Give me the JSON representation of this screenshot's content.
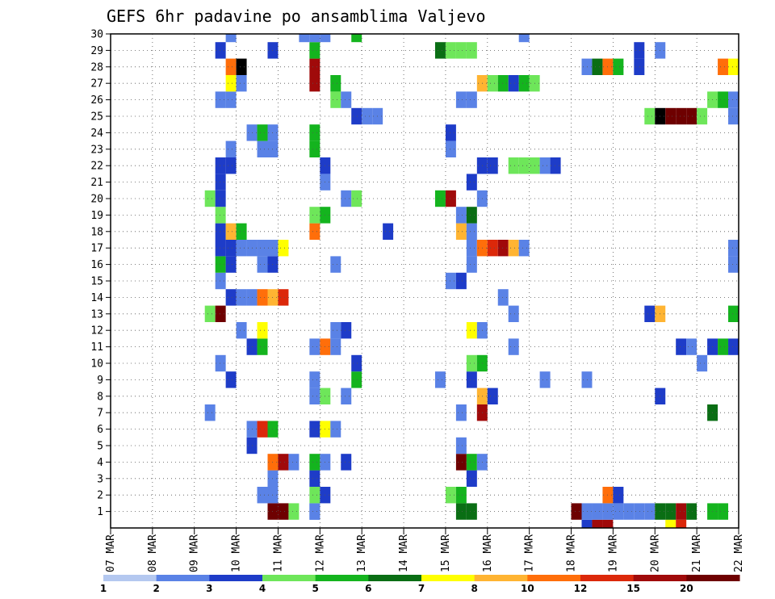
{
  "chart_data": {
    "type": "heatmap",
    "title": "GEFS 6hr padavine po ansamblima Valjevo",
    "xlabel": "",
    "ylabel": "",
    "x_labels": [
      "07 MAR",
      "08 MAR",
      "09 MAR",
      "10 MAR",
      "11 MAR",
      "12 MAR",
      "13 MAR",
      "14 MAR",
      "15 MAR",
      "16 MAR",
      "17 MAR",
      "18 MAR",
      "19 MAR",
      "20 MAR",
      "21 MAR",
      "22 MAR"
    ],
    "y_labels": [
      "1",
      "2",
      "3",
      "4",
      "5",
      "6",
      "7",
      "8",
      "9",
      "10",
      "11",
      "12",
      "13",
      "14",
      "15",
      "16",
      "17",
      "18",
      "19",
      "20",
      "21",
      "22",
      "23",
      "24",
      "25",
      "26",
      "27",
      "28",
      "29",
      "30"
    ],
    "xlim": [
      0,
      15
    ],
    "ylim": [
      0,
      30
    ],
    "time_step_hours": 6,
    "grid": true,
    "colorbar": {
      "orientation": "horizontal",
      "position": "bottom",
      "colors": [
        "#b4c8f0",
        "#5a82e6",
        "#1e3cc8",
        "#6ee65a",
        "#14b41e",
        "#0a6e14",
        "#ffff00",
        "#ffb432",
        "#ff6e0a",
        "#dc280a",
        "#a00a0a",
        "#6e0000"
      ],
      "tick_labels": [
        "1",
        "2",
        "3",
        "4",
        "5",
        "6",
        "7",
        "8",
        "10",
        "12",
        "15",
        "20"
      ]
    },
    "cells": [
      [
        11.25,
        0,
        2
      ],
      [
        11.5,
        0,
        10
      ],
      [
        11.75,
        0,
        10
      ],
      [
        13.25,
        0,
        6
      ],
      [
        13.5,
        0,
        9
      ],
      [
        3.75,
        1,
        11
      ],
      [
        4.0,
        1,
        11
      ],
      [
        4.25,
        1,
        3
      ],
      [
        4.75,
        1,
        1
      ],
      [
        11.0,
        1,
        11
      ],
      [
        14.5,
        1,
        4
      ],
      [
        11.25,
        1,
        1
      ],
      [
        11.5,
        1,
        1
      ],
      [
        11.75,
        1,
        1
      ],
      [
        12.0,
        1,
        1
      ],
      [
        12.25,
        1,
        1
      ],
      [
        12.5,
        1,
        1
      ],
      [
        12.75,
        1,
        1
      ],
      [
        14.25,
        1,
        4
      ],
      [
        8.5,
        1,
        5
      ],
      [
        8.25,
        1,
        5
      ],
      [
        13.0,
        1,
        5
      ],
      [
        13.25,
        1,
        5
      ],
      [
        13.5,
        1,
        10
      ],
      [
        13.75,
        1,
        5
      ],
      [
        4.75,
        1,
        1
      ],
      [
        3.5,
        2,
        1
      ],
      [
        3.75,
        2,
        1
      ],
      [
        4.75,
        2,
        3
      ],
      [
        5.0,
        2,
        2
      ],
      [
        8.0,
        2,
        3
      ],
      [
        8.25,
        2,
        4
      ],
      [
        11.75,
        2,
        8
      ],
      [
        12.0,
        2,
        2
      ],
      [
        3.75,
        3,
        1
      ],
      [
        4.75,
        3,
        2
      ],
      [
        8.5,
        3,
        2
      ],
      [
        3.75,
        4,
        8
      ],
      [
        4.0,
        4,
        10
      ],
      [
        4.25,
        4,
        1
      ],
      [
        4.75,
        4,
        4
      ],
      [
        5.0,
        4,
        1
      ],
      [
        5.5,
        4,
        2
      ],
      [
        8.25,
        4,
        11
      ],
      [
        8.5,
        4,
        4
      ],
      [
        8.75,
        4,
        1
      ],
      [
        3.25,
        5,
        2
      ],
      [
        8.25,
        5,
        1
      ],
      [
        3.25,
        6,
        1
      ],
      [
        3.5,
        6,
        9
      ],
      [
        3.75,
        6,
        4
      ],
      [
        4.75,
        6,
        2
      ],
      [
        5.0,
        6,
        6
      ],
      [
        5.25,
        6,
        1
      ],
      [
        2.25,
        7,
        1
      ],
      [
        8.25,
        7,
        1
      ],
      [
        8.75,
        7,
        10
      ],
      [
        14.25,
        7,
        5
      ],
      [
        4.75,
        8,
        1
      ],
      [
        5.0,
        8,
        3
      ],
      [
        5.5,
        8,
        1
      ],
      [
        8.75,
        8,
        7
      ],
      [
        9.0,
        8,
        2
      ],
      [
        13.0,
        8,
        2
      ],
      [
        2.75,
        9,
        2
      ],
      [
        4.75,
        9,
        1
      ],
      [
        5.75,
        9,
        4
      ],
      [
        7.75,
        9,
        1
      ],
      [
        8.5,
        9,
        2
      ],
      [
        10.25,
        9,
        1
      ],
      [
        11.25,
        9,
        1
      ],
      [
        2.5,
        10,
        1
      ],
      [
        5.75,
        10,
        2
      ],
      [
        8.5,
        10,
        3
      ],
      [
        8.75,
        10,
        4
      ],
      [
        14.0,
        10,
        1
      ],
      [
        3.25,
        11,
        2
      ],
      [
        3.5,
        11,
        4
      ],
      [
        4.75,
        11,
        1
      ],
      [
        5.0,
        11,
        8
      ],
      [
        5.25,
        11,
        1
      ],
      [
        9.5,
        11,
        1
      ],
      [
        13.5,
        11,
        2
      ],
      [
        13.75,
        11,
        1
      ],
      [
        14.25,
        11,
        2
      ],
      [
        14.5,
        11,
        4
      ],
      [
        14.75,
        11,
        2
      ],
      [
        3.0,
        12,
        1
      ],
      [
        3.5,
        12,
        6
      ],
      [
        5.25,
        12,
        1
      ],
      [
        5.5,
        12,
        2
      ],
      [
        8.5,
        12,
        6
      ],
      [
        8.75,
        12,
        1
      ],
      [
        2.25,
        13,
        3
      ],
      [
        2.5,
        13,
        11
      ],
      [
        9.5,
        13,
        1
      ],
      [
        12.75,
        13,
        2
      ],
      [
        13.0,
        13,
        7
      ],
      [
        14.75,
        13,
        4
      ],
      [
        15.0,
        13,
        1
      ],
      [
        2.75,
        14,
        2
      ],
      [
        3.0,
        14,
        1
      ],
      [
        3.25,
        14,
        1
      ],
      [
        3.5,
        14,
        8
      ],
      [
        3.75,
        14,
        7
      ],
      [
        4.0,
        14,
        9
      ],
      [
        9.25,
        14,
        1
      ],
      [
        2.5,
        15,
        1
      ],
      [
        8.0,
        15,
        1
      ],
      [
        8.25,
        15,
        2
      ],
      [
        2.5,
        16,
        4
      ],
      [
        2.75,
        16,
        2
      ],
      [
        3.5,
        16,
        1
      ],
      [
        3.75,
        16,
        2
      ],
      [
        5.25,
        16,
        1
      ],
      [
        8.5,
        16,
        1
      ],
      [
        14.75,
        16,
        1
      ],
      [
        2.5,
        17,
        2
      ],
      [
        2.75,
        17,
        2
      ],
      [
        3.0,
        17,
        1
      ],
      [
        3.25,
        17,
        1
      ],
      [
        3.5,
        17,
        1
      ],
      [
        3.75,
        17,
        1
      ],
      [
        4.0,
        17,
        6
      ],
      [
        8.5,
        17,
        1
      ],
      [
        8.75,
        17,
        8
      ],
      [
        9.0,
        17,
        9
      ],
      [
        9.25,
        17,
        10
      ],
      [
        9.5,
        17,
        7
      ],
      [
        9.75,
        17,
        1
      ],
      [
        14.75,
        17,
        1
      ],
      [
        2.5,
        18,
        2
      ],
      [
        2.75,
        18,
        7
      ],
      [
        3.0,
        18,
        4
      ],
      [
        4.75,
        18,
        8
      ],
      [
        6.5,
        18,
        2
      ],
      [
        8.25,
        18,
        7
      ],
      [
        8.5,
        18,
        1
      ],
      [
        2.5,
        19,
        3
      ],
      [
        4.75,
        19,
        3
      ],
      [
        5.0,
        19,
        4
      ],
      [
        8.25,
        19,
        1
      ],
      [
        8.5,
        19,
        5
      ],
      [
        2.25,
        20,
        3
      ],
      [
        2.5,
        20,
        2
      ],
      [
        5.5,
        20,
        1
      ],
      [
        5.75,
        20,
        3
      ],
      [
        7.75,
        20,
        4
      ],
      [
        8.0,
        20,
        10
      ],
      [
        8.75,
        20,
        1
      ],
      [
        2.5,
        21,
        2
      ],
      [
        5.0,
        21,
        1
      ],
      [
        8.5,
        21,
        2
      ],
      [
        2.5,
        22,
        2
      ],
      [
        2.75,
        22,
        2
      ],
      [
        5.0,
        22,
        2
      ],
      [
        8.75,
        22,
        2
      ],
      [
        9.0,
        22,
        2
      ],
      [
        9.5,
        22,
        3
      ],
      [
        9.75,
        22,
        3
      ],
      [
        10.0,
        22,
        3
      ],
      [
        10.25,
        22,
        1
      ],
      [
        10.5,
        22,
        2
      ],
      [
        2.75,
        23,
        1
      ],
      [
        3.5,
        23,
        1
      ],
      [
        3.75,
        23,
        1
      ],
      [
        4.75,
        23,
        4
      ],
      [
        8.0,
        23,
        1
      ],
      [
        3.25,
        24,
        1
      ],
      [
        3.5,
        24,
        4
      ],
      [
        3.75,
        24,
        1
      ],
      [
        4.75,
        24,
        4
      ],
      [
        8.0,
        24,
        2
      ],
      [
        5.75,
        25,
        2
      ],
      [
        6.0,
        25,
        1
      ],
      [
        6.25,
        25,
        1
      ],
      [
        12.75,
        25,
        3
      ],
      [
        13.0,
        25,
        12
      ],
      [
        13.25,
        25,
        11
      ],
      [
        13.5,
        25,
        11
      ],
      [
        13.75,
        25,
        11
      ],
      [
        14.0,
        25,
        3
      ],
      [
        14.75,
        25,
        1
      ],
      [
        15.0,
        25,
        2
      ],
      [
        2.5,
        26,
        1
      ],
      [
        2.75,
        26,
        1
      ],
      [
        5.25,
        26,
        3
      ],
      [
        5.5,
        26,
        1
      ],
      [
        8.25,
        26,
        1
      ],
      [
        8.5,
        26,
        1
      ],
      [
        14.25,
        26,
        3
      ],
      [
        14.5,
        26,
        4
      ],
      [
        14.75,
        26,
        1
      ],
      [
        2.75,
        27,
        6
      ],
      [
        3.0,
        27,
        1
      ],
      [
        4.75,
        27,
        10
      ],
      [
        5.25,
        27,
        4
      ],
      [
        8.75,
        27,
        7
      ],
      [
        9.0,
        27,
        3
      ],
      [
        9.25,
        27,
        4
      ],
      [
        9.5,
        27,
        2
      ],
      [
        9.75,
        27,
        4
      ],
      [
        10.0,
        27,
        3
      ],
      [
        2.75,
        28,
        8
      ],
      [
        3.0,
        28,
        12
      ],
      [
        4.75,
        28,
        10
      ],
      [
        11.25,
        28,
        1
      ],
      [
        11.5,
        28,
        5
      ],
      [
        11.75,
        28,
        8
      ],
      [
        12.0,
        28,
        4
      ],
      [
        12.5,
        28,
        2
      ],
      [
        14.5,
        28,
        8
      ],
      [
        14.75,
        28,
        6
      ],
      [
        15.0,
        28,
        4
      ],
      [
        2.5,
        29,
        2
      ],
      [
        3.75,
        29,
        2
      ],
      [
        4.75,
        29,
        4
      ],
      [
        7.75,
        29,
        5
      ],
      [
        8.0,
        29,
        3
      ],
      [
        8.25,
        29,
        3
      ],
      [
        8.5,
        29,
        3
      ],
      [
        12.5,
        29,
        2
      ],
      [
        13.0,
        29,
        1
      ],
      [
        2.75,
        30,
        1
      ],
      [
        4.5,
        30,
        1
      ],
      [
        4.75,
        30,
        1
      ],
      [
        5.0,
        30,
        1
      ],
      [
        5.75,
        30,
        4
      ],
      [
        9.75,
        30,
        1
      ]
    ]
  }
}
